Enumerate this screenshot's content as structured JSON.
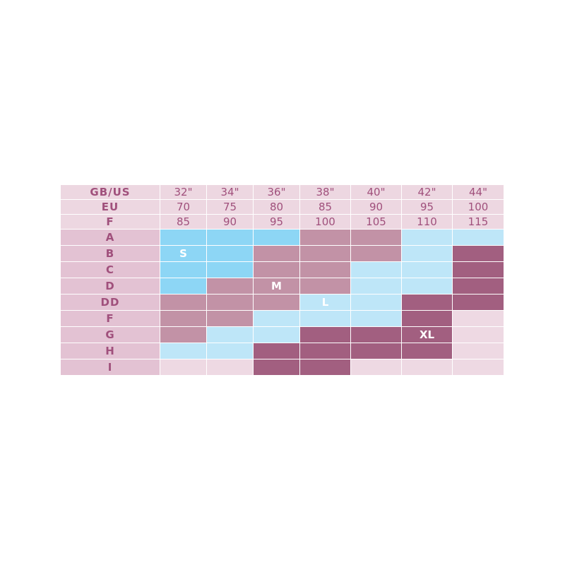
{
  "table": {
    "header_rows": [
      {
        "label": "GB/US",
        "cells": [
          "32\"",
          "34\"",
          "36\"",
          "38\"",
          "40\"",
          "42\"",
          "44\""
        ]
      },
      {
        "label": "EU",
        "cells": [
          "70",
          "75",
          "80",
          "85",
          "90",
          "95",
          "100"
        ]
      },
      {
        "label": "F",
        "cells": [
          "85",
          "90",
          "95",
          "100",
          "105",
          "110",
          "115"
        ]
      }
    ],
    "rows": [
      {
        "label": "A",
        "cells": [
          {
            "color": "#8dd6f5"
          },
          {
            "color": "#8dd6f5"
          },
          {
            "color": "#8dd6f5"
          },
          {
            "color": "#c292a6"
          },
          {
            "color": "#c292a6"
          },
          {
            "color": "#bee6f8"
          },
          {
            "color": "#bee6f8"
          }
        ]
      },
      {
        "label": "B",
        "cells": [
          {
            "color": "#8dd6f5",
            "text": "S"
          },
          {
            "color": "#8dd6f5"
          },
          {
            "color": "#c292a6"
          },
          {
            "color": "#c292a6"
          },
          {
            "color": "#c292a6"
          },
          {
            "color": "#bee6f8"
          },
          {
            "color": "#a25f80"
          }
        ]
      },
      {
        "label": "C",
        "cells": [
          {
            "color": "#8dd6f5"
          },
          {
            "color": "#8dd6f5"
          },
          {
            "color": "#c292a6"
          },
          {
            "color": "#c292a6"
          },
          {
            "color": "#bee6f8"
          },
          {
            "color": "#bee6f8"
          },
          {
            "color": "#a25f80"
          }
        ]
      },
      {
        "label": "D",
        "cells": [
          {
            "color": "#8dd6f5"
          },
          {
            "color": "#c292a6"
          },
          {
            "color": "#c292a6",
            "text": "M"
          },
          {
            "color": "#c292a6"
          },
          {
            "color": "#bee6f8"
          },
          {
            "color": "#bee6f8"
          },
          {
            "color": "#a25f80"
          }
        ]
      },
      {
        "label": "DD",
        "cells": [
          {
            "color": "#c292a6"
          },
          {
            "color": "#c292a6"
          },
          {
            "color": "#c292a6"
          },
          {
            "color": "#bee6f8",
            "text": "L"
          },
          {
            "color": "#bee6f8"
          },
          {
            "color": "#a25f80"
          },
          {
            "color": "#a25f80"
          }
        ]
      },
      {
        "label": "F",
        "cells": [
          {
            "color": "#c292a6"
          },
          {
            "color": "#c292a6"
          },
          {
            "color": "#bee6f8"
          },
          {
            "color": "#bee6f8"
          },
          {
            "color": "#bee6f8"
          },
          {
            "color": "#a25f80"
          },
          {
            "color": "#eed9e3"
          }
        ]
      },
      {
        "label": "G",
        "cells": [
          {
            "color": "#c292a6"
          },
          {
            "color": "#bee6f8"
          },
          {
            "color": "#bee6f8"
          },
          {
            "color": "#a25f80"
          },
          {
            "color": "#a25f80"
          },
          {
            "color": "#a25f80",
            "text": "XL"
          },
          {
            "color": "#eed9e3"
          }
        ]
      },
      {
        "label": "H",
        "cells": [
          {
            "color": "#bee6f8"
          },
          {
            "color": "#bee6f8"
          },
          {
            "color": "#a25f80"
          },
          {
            "color": "#a25f80"
          },
          {
            "color": "#a25f80"
          },
          {
            "color": "#a25f80"
          },
          {
            "color": "#eed9e3"
          }
        ]
      },
      {
        "label": "I",
        "cells": [
          {
            "color": "#eed9e3"
          },
          {
            "color": "#eed9e3"
          },
          {
            "color": "#a25f80"
          },
          {
            "color": "#a25f80"
          },
          {
            "color": "#eed9e3"
          },
          {
            "color": "#eed9e3"
          },
          {
            "color": "#eed9e3"
          }
        ]
      }
    ]
  }
}
